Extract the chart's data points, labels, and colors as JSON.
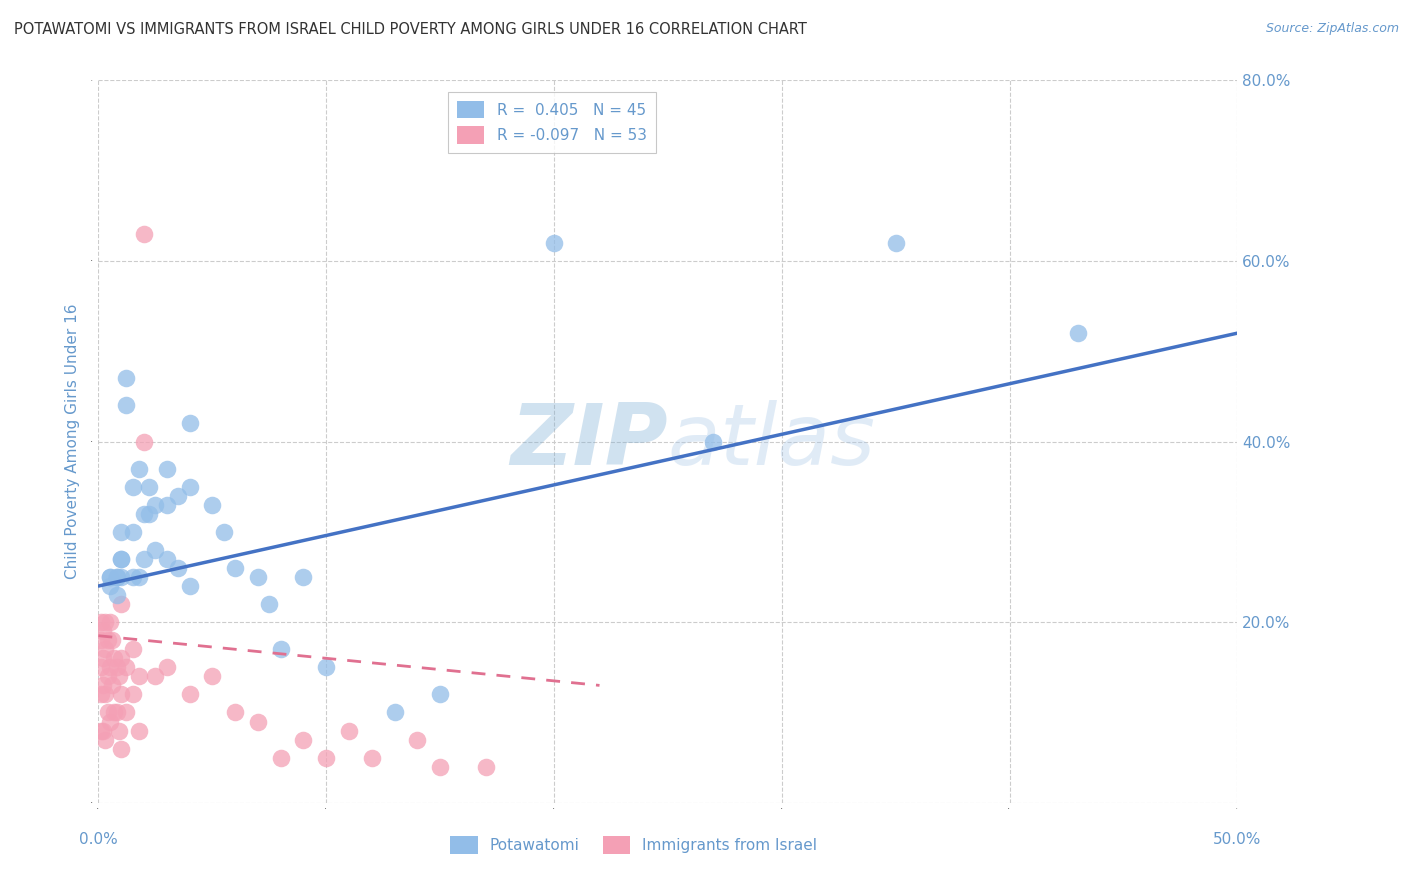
{
  "title": "POTAWATOMI VS IMMIGRANTS FROM ISRAEL CHILD POVERTY AMONG GIRLS UNDER 16 CORRELATION CHART",
  "source": "Source: ZipAtlas.com",
  "ylabel": "Child Poverty Among Girls Under 16",
  "xlim": [
    0.0,
    0.5
  ],
  "ylim": [
    0.0,
    0.8
  ],
  "xticks": [
    0.0,
    0.1,
    0.2,
    0.3,
    0.4,
    0.5
  ],
  "yticks": [
    0.0,
    0.2,
    0.4,
    0.6,
    0.8
  ],
  "xtick_labels": [
    "0.0%",
    "",
    "",
    "",
    "",
    "50.0%"
  ],
  "ytick_labels_right": [
    "",
    "20.0%",
    "40.0%",
    "60.0%",
    "80.0%"
  ],
  "potawatomi_R": 0.405,
  "potawatomi_N": 45,
  "israel_R": -0.097,
  "israel_N": 53,
  "potawatomi_color": "#92BDE8",
  "israel_color": "#F4A0B5",
  "potawatomi_line_color": "#4472C4",
  "israel_line_color": "#E07090",
  "watermark_color": "#C8D8F0",
  "background_color": "#FFFFFF",
  "grid_color": "#CCCCCC",
  "axis_color": "#6699CC",
  "title_color": "#333333",
  "potawatomi_x": [
    0.005,
    0.005,
    0.005,
    0.008,
    0.008,
    0.008,
    0.01,
    0.01,
    0.01,
    0.01,
    0.012,
    0.012,
    0.015,
    0.015,
    0.015,
    0.018,
    0.018,
    0.02,
    0.02,
    0.022,
    0.022,
    0.025,
    0.025,
    0.03,
    0.03,
    0.03,
    0.035,
    0.035,
    0.04,
    0.04,
    0.04,
    0.05,
    0.055,
    0.06,
    0.07,
    0.075,
    0.08,
    0.09,
    0.1,
    0.13,
    0.15,
    0.2,
    0.27,
    0.35,
    0.43
  ],
  "potawatomi_y": [
    0.25,
    0.25,
    0.24,
    0.25,
    0.25,
    0.23,
    0.3,
    0.27,
    0.27,
    0.25,
    0.47,
    0.44,
    0.35,
    0.3,
    0.25,
    0.37,
    0.25,
    0.32,
    0.27,
    0.35,
    0.32,
    0.33,
    0.28,
    0.37,
    0.33,
    0.27,
    0.34,
    0.26,
    0.42,
    0.35,
    0.24,
    0.33,
    0.3,
    0.26,
    0.25,
    0.22,
    0.17,
    0.25,
    0.15,
    0.1,
    0.12,
    0.62,
    0.4,
    0.62,
    0.52
  ],
  "israel_x": [
    0.001,
    0.001,
    0.001,
    0.001,
    0.001,
    0.002,
    0.002,
    0.002,
    0.002,
    0.003,
    0.003,
    0.003,
    0.003,
    0.004,
    0.004,
    0.004,
    0.005,
    0.005,
    0.005,
    0.006,
    0.006,
    0.007,
    0.007,
    0.008,
    0.008,
    0.009,
    0.009,
    0.01,
    0.01,
    0.01,
    0.01,
    0.012,
    0.012,
    0.015,
    0.015,
    0.018,
    0.018,
    0.02,
    0.02,
    0.025,
    0.03,
    0.04,
    0.05,
    0.06,
    0.07,
    0.08,
    0.09,
    0.1,
    0.11,
    0.12,
    0.14,
    0.15,
    0.17
  ],
  "israel_y": [
    0.2,
    0.18,
    0.15,
    0.12,
    0.08,
    0.19,
    0.16,
    0.13,
    0.08,
    0.2,
    0.17,
    0.12,
    0.07,
    0.18,
    0.14,
    0.1,
    0.2,
    0.15,
    0.09,
    0.18,
    0.13,
    0.16,
    0.1,
    0.15,
    0.1,
    0.14,
    0.08,
    0.22,
    0.16,
    0.12,
    0.06,
    0.15,
    0.1,
    0.17,
    0.12,
    0.14,
    0.08,
    0.63,
    0.4,
    0.14,
    0.15,
    0.12,
    0.14,
    0.1,
    0.09,
    0.05,
    0.07,
    0.05,
    0.08,
    0.05,
    0.07,
    0.04,
    0.04
  ],
  "pot_line_x": [
    0.0,
    0.5
  ],
  "pot_line_y": [
    0.24,
    0.52
  ],
  "isr_line_x": [
    0.0,
    0.22
  ],
  "isr_line_y": [
    0.185,
    0.13
  ],
  "isr_line_style": "dashed"
}
